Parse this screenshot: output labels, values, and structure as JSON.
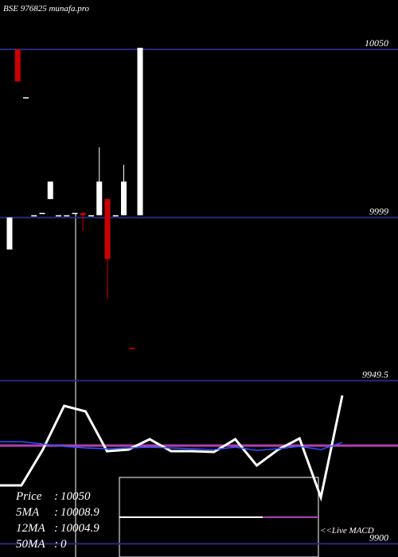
{
  "chart_data": {
    "type": "candlestick",
    "title": "BSE 976825 munafa.pro",
    "categories": [
      null,
      null,
      null,
      null,
      null,
      null,
      null,
      null,
      null,
      null,
      null,
      null,
      null,
      null,
      null,
      null,
      null
    ],
    "open": [
      9989.3,
      10050,
      10035.5,
      9999.7,
      10000.4,
      10004.6,
      9999.7,
      9999.7,
      10000.4,
      10000.4,
      9999.7,
      9999.7,
      10004.6,
      9999.7,
      9999.7,
      9959.5,
      9999.7
    ],
    "high": [
      9999,
      10050,
      10035.5,
      9999.7,
      10000.4,
      10009.9,
      9999.7,
      9999.7,
      10000.4,
      10000.4,
      9999.7,
      10020.3,
      10004.6,
      9999.7,
      10015,
      9959.5,
      10050.5
    ],
    "low": [
      9989.3,
      10040.3,
      10035.5,
      9999.7,
      10000.4,
      10004.6,
      9999.7,
      9999.7,
      10000.4,
      9994.9,
      9999.7,
      9999.7,
      9974.3,
      9999.7,
      9999.7,
      9959.1,
      9999.7
    ],
    "close": [
      9999,
      10040.3,
      10035.5,
      9999.7,
      10000.4,
      10009.9,
      9999.7,
      9999.7,
      10000.4,
      9999.7,
      9999.7,
      10009.9,
      9986.4,
      9999.7,
      10009.9,
      9959.1,
      10050.5
    ],
    "up_color": "#ffffff",
    "down_color": "#cc0000",
    "ylim": [
      9896,
      10065
    ],
    "yticks": [
      10050,
      9999,
      9949.5,
      9900
    ],
    "macd": {
      "label": "<<Live MACD",
      "lim": [
        -14,
        14
      ],
      "zero_color": "#b040b0",
      "series": [
        {
          "color": "#ffffff",
          "values": [
            -5,
            -5,
            -0.5,
            5,
            4.3,
            -0.7,
            -0.5,
            0.8,
            -0.7,
            -0.7,
            -0.8,
            0.8,
            -2.5,
            -0.5,
            0.9,
            -6.5,
            6.3
          ]
        },
        {
          "color": "#3050ff",
          "values": [
            0.5,
            0.5,
            0.2,
            -0.1,
            -0.3,
            -0.4,
            -0.3,
            -0.2,
            -0.3,
            -0.4,
            -0.5,
            -0.2,
            -0.6,
            -0.4,
            -0.1,
            -0.5,
            0.4
          ]
        }
      ]
    },
    "stats": [
      {
        "label": "Price",
        "value": "10050"
      },
      {
        "label": "5MA",
        "value": "10008.9"
      },
      {
        "label": "12MA",
        "value": "10004.9"
      },
      {
        "label": "50MA",
        "value": "0"
      }
    ]
  }
}
